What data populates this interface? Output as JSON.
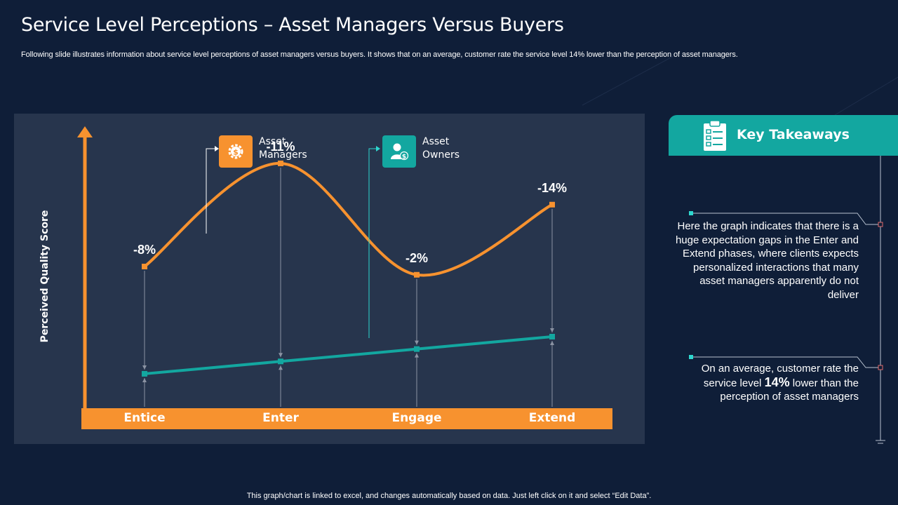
{
  "title": "Service Level Perceptions – Asset Managers Versus Buyers",
  "subtitle": "Following slide illustrates information about service level perceptions of asset managers versus buyers. It shows that on an average, customer rate the service level 14% lower than the perception of asset managers.",
  "footer": "This graph/chart is linked to excel, and changes automatically based on data. Just left click on it and select “Edit Data”.",
  "colors": {
    "background": "#0f1e38",
    "panel": "#27354d",
    "orange": "#f7922f",
    "teal": "#13a7a0"
  },
  "chart_data": {
    "type": "line",
    "ylabel": "Perceived Quality Score",
    "categories": [
      "Entice",
      "Enter",
      "Engage",
      "Extend"
    ],
    "series": [
      {
        "name": "Asset Managers",
        "color": "#f7922f",
        "values": [
          1.0,
          3.5,
          0.8,
          2.5
        ],
        "labels": [
          "-8%",
          "-11%",
          "-2%",
          "-14%"
        ],
        "icon": "gear-dollar-icon"
      },
      {
        "name": "Asset Owners",
        "color": "#13a7a0",
        "values": [
          -1.6,
          -1.3,
          -1.0,
          -0.7
        ],
        "icon": "person-dollar-icon"
      }
    ],
    "ylim": [
      -2.4,
      4.4
    ],
    "legend_placement": "top"
  },
  "legend": {
    "asset_managers_line1": "Asset",
    "asset_managers_line2": "Managers",
    "asset_owners_line1": "Asset",
    "asset_owners_line2": "Owners"
  },
  "key_takeaways": {
    "title": "Key Takeaways",
    "icon": "clipboard-checklist-icon",
    "point1": "Here the graph indicates that there is a huge expectation gaps in the Enter and Extend phases, where clients expects personalized interactions that many asset managers apparently do not deliver",
    "point2_pre": "On an average, customer rate the service level",
    "point2_bold": "14%",
    "point2_post": "lower than the perception of asset managers"
  }
}
